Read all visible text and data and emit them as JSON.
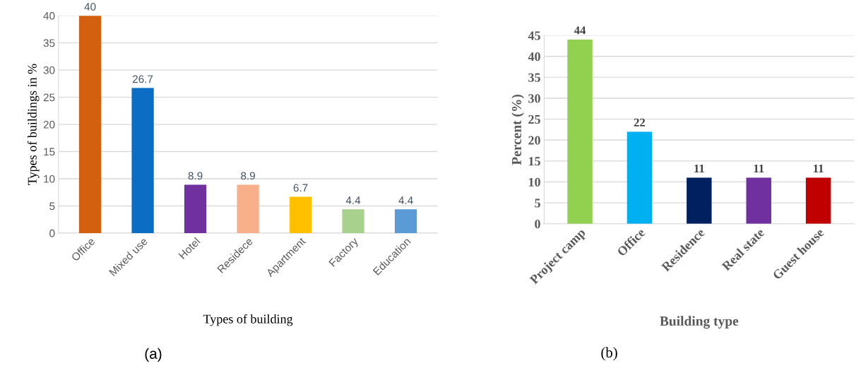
{
  "chart_data": [
    {
      "type": "bar",
      "categories": [
        "Office",
        "Mixed use",
        "Hotel",
        "Residece",
        "Apartment",
        "Factory",
        "Education"
      ],
      "values": [
        40,
        26.7,
        8.9,
        8.9,
        6.7,
        4.4,
        4.4
      ],
      "colors": [
        "#d3600f",
        "#0b6ec4",
        "#7030a0",
        "#f8b08a",
        "#ffc000",
        "#a9d18e",
        "#5b9bd5"
      ],
      "xlabel": "Types of building",
      "ylabel": "Types of buildings in %",
      "ylim": [
        0,
        40
      ],
      "yticks": [
        0,
        5,
        10,
        15,
        20,
        25,
        30,
        35,
        40
      ],
      "grid": "y",
      "data_labels": true,
      "annotations": [
        "(a)"
      ]
    },
    {
      "type": "bar",
      "categories": [
        "Project camp",
        "Office",
        "Residence",
        "Real state",
        "Guest house"
      ],
      "values": [
        44,
        22,
        11,
        11,
        11
      ],
      "colors": [
        "#92d050",
        "#00b0f0",
        "#002060",
        "#7030a0",
        "#c00000"
      ],
      "xlabel": "Building type",
      "ylabel": "Percent (%)",
      "ylim": [
        0,
        45
      ],
      "yticks": [
        0,
        5,
        10,
        15,
        20,
        25,
        30,
        35,
        40,
        45
      ],
      "grid": "y",
      "data_labels": true,
      "annotations": [
        "(b)"
      ]
    }
  ]
}
